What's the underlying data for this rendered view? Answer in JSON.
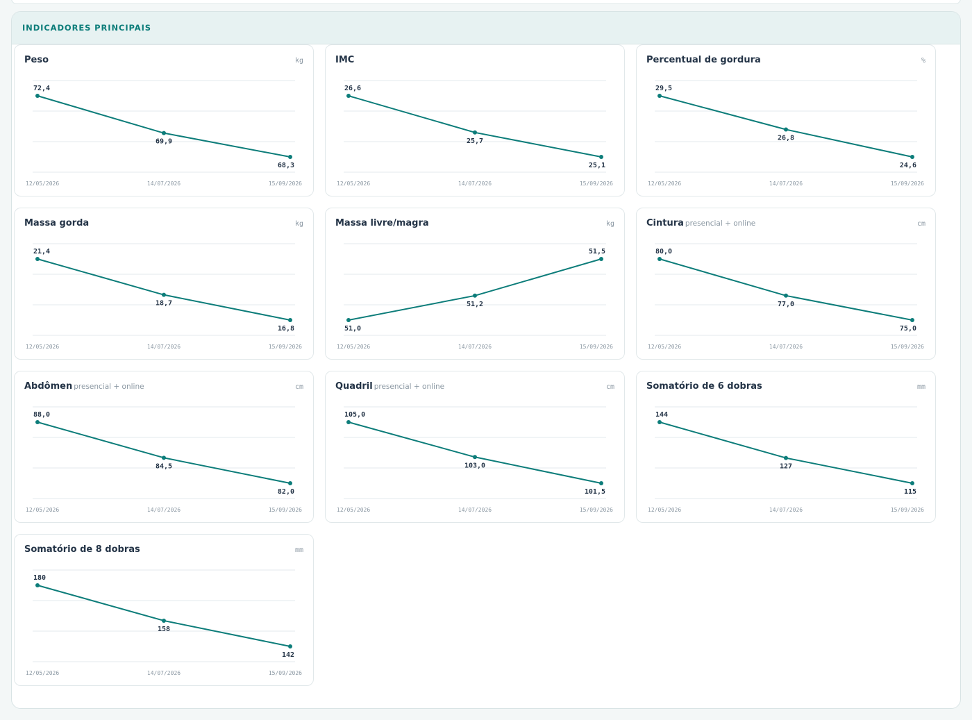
{
  "section": {
    "title": "INDICADORES PRINCIPAIS"
  },
  "colors": {
    "accent": "#0d7d7a",
    "grid": "#e3e9ec",
    "label": "#243447",
    "muted": "#8a97a2"
  },
  "chart_data": [
    {
      "type": "line",
      "title": "Peso",
      "subtitle": "",
      "unit": "kg",
      "x": [
        "12/05/2026",
        "14/07/2026",
        "15/09/2026"
      ],
      "values": [
        72.4,
        69.9,
        68.3
      ],
      "labels": [
        "72,4",
        "69,9",
        "68,3"
      ]
    },
    {
      "type": "line",
      "title": "IMC",
      "subtitle": "",
      "unit": "",
      "x": [
        "12/05/2026",
        "14/07/2026",
        "15/09/2026"
      ],
      "values": [
        26.6,
        25.7,
        25.1
      ],
      "labels": [
        "26,6",
        "25,7",
        "25,1"
      ]
    },
    {
      "type": "line",
      "title": "Percentual de gordura",
      "subtitle": "",
      "unit": "%",
      "x": [
        "12/05/2026",
        "14/07/2026",
        "15/09/2026"
      ],
      "values": [
        29.5,
        26.8,
        24.6
      ],
      "labels": [
        "29,5",
        "26,8",
        "24,6"
      ]
    },
    {
      "type": "line",
      "title": "Massa gorda",
      "subtitle": "",
      "unit": "kg",
      "x": [
        "12/05/2026",
        "14/07/2026",
        "15/09/2026"
      ],
      "values": [
        21.4,
        18.7,
        16.8
      ],
      "labels": [
        "21,4",
        "18,7",
        "16,8"
      ]
    },
    {
      "type": "line",
      "title": "Massa livre/magra",
      "subtitle": "",
      "unit": "kg",
      "x": [
        "12/05/2026",
        "14/07/2026",
        "15/09/2026"
      ],
      "values": [
        51.0,
        51.2,
        51.5
      ],
      "labels": [
        "51,0",
        "51,2",
        "51,5"
      ]
    },
    {
      "type": "line",
      "title": "Cintura",
      "subtitle": "presencial + online",
      "unit": "cm",
      "x": [
        "12/05/2026",
        "14/07/2026",
        "15/09/2026"
      ],
      "values": [
        80.0,
        77.0,
        75.0
      ],
      "labels": [
        "80,0",
        "77,0",
        "75,0"
      ]
    },
    {
      "type": "line",
      "title": "Abdômen",
      "subtitle": "presencial + online",
      "unit": "cm",
      "x": [
        "12/05/2026",
        "14/07/2026",
        "15/09/2026"
      ],
      "values": [
        88.0,
        84.5,
        82.0
      ],
      "labels": [
        "88,0",
        "84,5",
        "82,0"
      ]
    },
    {
      "type": "line",
      "title": "Quadril",
      "subtitle": "presencial + online",
      "unit": "cm",
      "x": [
        "12/05/2026",
        "14/07/2026",
        "15/09/2026"
      ],
      "values": [
        105.0,
        103.0,
        101.5
      ],
      "labels": [
        "105,0",
        "103,0",
        "101,5"
      ]
    },
    {
      "type": "line",
      "title": "Somatório de 6 dobras",
      "subtitle": "",
      "unit": "mm",
      "x": [
        "12/05/2026",
        "14/07/2026",
        "15/09/2026"
      ],
      "values": [
        144,
        127,
        115
      ],
      "labels": [
        "144",
        "127",
        "115"
      ]
    },
    {
      "type": "line",
      "title": "Somatório de 8 dobras",
      "subtitle": "",
      "unit": "mm",
      "x": [
        "12/05/2026",
        "14/07/2026",
        "15/09/2026"
      ],
      "values": [
        180,
        158,
        142
      ],
      "labels": [
        "180",
        "158",
        "142"
      ]
    }
  ]
}
